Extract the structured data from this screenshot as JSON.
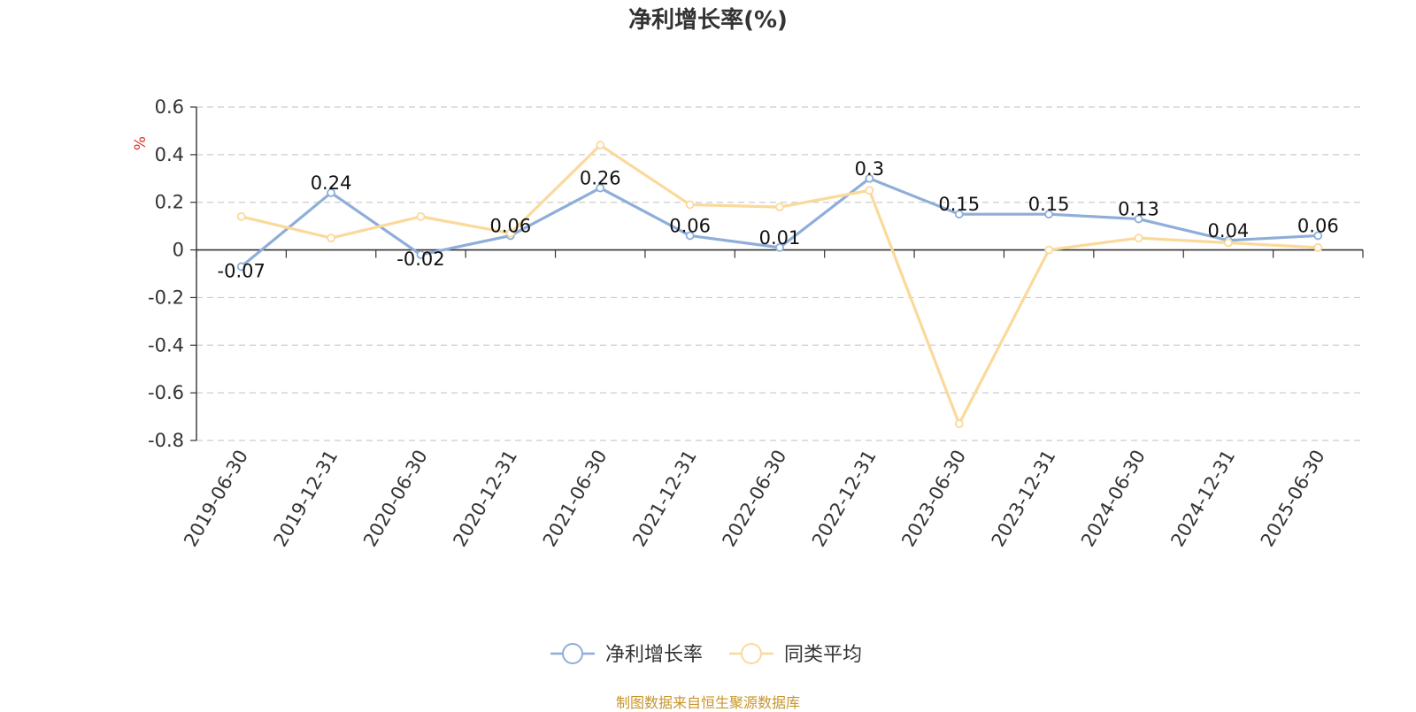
{
  "colors": {
    "series_main": "#8eaed9",
    "series_avg": "#fbd99a",
    "ylabel": "#e0342a",
    "grid": "#cccccc",
    "axis": "#333333",
    "source": "#c9952a"
  },
  "chart_data": {
    "type": "line",
    "title": "净利增长率(%)",
    "ylabel": "%",
    "xlabel": "",
    "categories": [
      "2019-06-30",
      "2019-12-31",
      "2020-06-30",
      "2020-12-31",
      "2021-06-30",
      "2021-12-31",
      "2022-06-30",
      "2022-12-31",
      "2023-06-30",
      "2023-12-31",
      "2024-06-30",
      "2024-12-31",
      "2025-06-30"
    ],
    "ylim": [
      -0.8,
      0.6
    ],
    "yticks": [
      "0.6",
      "0.4",
      "0.2",
      "0",
      "-0.2",
      "-0.4",
      "-0.6",
      "-0.8"
    ],
    "ytick_values": [
      0.6,
      0.4,
      0.2,
      0,
      -0.2,
      -0.4,
      -0.6,
      -0.8
    ],
    "grid": true,
    "legend_position": "bottom-center",
    "series": [
      {
        "name": "净利增长率",
        "values": [
          -0.07,
          0.24,
          -0.02,
          0.06,
          0.26,
          0.06,
          0.01,
          0.3,
          0.15,
          0.15,
          0.13,
          0.04,
          0.06
        ],
        "labels": [
          "-0.07",
          "0.24",
          "-0.02",
          "0.06",
          "0.26",
          "0.06",
          "0.01",
          "0.3",
          "0.15",
          "0.15",
          "0.13",
          "0.04",
          "0.06"
        ]
      },
      {
        "name": "同类平均",
        "values": [
          0.14,
          0.05,
          0.14,
          0.07,
          0.44,
          0.19,
          0.18,
          0.25,
          -0.73,
          0.0,
          0.05,
          0.03,
          0.01
        ]
      }
    ]
  },
  "source_note": "制图数据来自恒生聚源数据库"
}
